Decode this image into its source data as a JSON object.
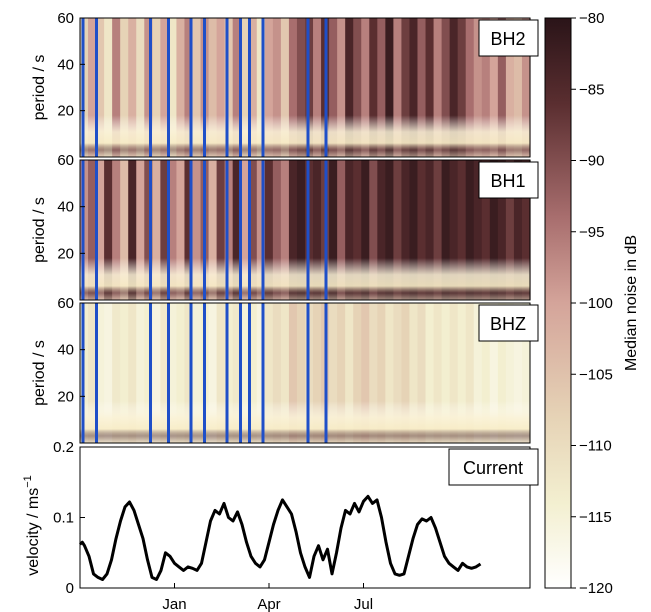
{
  "chart_data": {
    "type": "heatmap",
    "panels": [
      {
        "label": "BH2",
        "ylabel": "period / s",
        "ylim": [
          0,
          60
        ],
        "yticks": [
          20,
          40,
          60
        ],
        "tick_labels": [
          "20",
          "40",
          "60"
        ],
        "darkness": [
          0.3,
          0.5,
          0.35,
          0.2,
          0.6,
          0.3,
          0.45,
          0.25,
          0.55,
          0.3,
          0.5,
          0.2,
          0.45,
          0.6,
          0.35,
          0.55,
          0.4,
          0.5,
          0.35,
          0.6,
          0.3,
          0.45,
          0.2,
          0.5,
          0.55,
          0.35,
          0.65,
          0.75,
          0.8,
          0.6,
          0.85,
          0.7,
          0.55,
          0.9,
          0.75,
          0.6,
          0.85,
          0.7,
          0.95,
          0.6,
          0.8,
          0.9,
          0.7,
          0.85,
          0.6,
          0.75,
          0.9,
          0.8,
          0.65,
          0.55,
          0.6,
          0.5,
          0.7,
          0.45,
          0.4,
          0.55
        ]
      },
      {
        "label": "BH1",
        "ylabel": "period / s",
        "ylim": [
          0,
          60
        ],
        "yticks": [
          20,
          40,
          60
        ],
        "tick_labels": [
          "20",
          "40",
          "60"
        ],
        "darkness": [
          0.55,
          0.7,
          0.5,
          0.85,
          0.6,
          0.4,
          0.9,
          0.5,
          0.75,
          0.45,
          0.8,
          0.6,
          0.5,
          0.85,
          0.55,
          0.7,
          0.45,
          0.8,
          0.6,
          0.9,
          0.5,
          0.75,
          0.55,
          0.85,
          0.7,
          0.6,
          0.9,
          0.95,
          0.85,
          0.9,
          0.8,
          0.95,
          0.7,
          0.9,
          0.85,
          0.95,
          0.75,
          0.9,
          0.95,
          0.8,
          0.9,
          0.95,
          0.85,
          0.9,
          0.8,
          0.95,
          0.9,
          0.85,
          0.95,
          0.9,
          0.85,
          0.95,
          0.9,
          0.8,
          0.9,
          0.85
        ]
      },
      {
        "label": "BHZ",
        "ylabel": "period / s",
        "ylim": [
          0,
          60
        ],
        "yticks": [
          20,
          40,
          60
        ],
        "tick_labels": [
          "20",
          "40",
          "60"
        ],
        "darkness": [
          0.15,
          0.2,
          0.12,
          0.1,
          0.18,
          0.15,
          0.2,
          0.12,
          0.15,
          0.1,
          0.18,
          0.12,
          0.15,
          0.2,
          0.12,
          0.15,
          0.1,
          0.2,
          0.15,
          0.18,
          0.12,
          0.15,
          0.1,
          0.2,
          0.25,
          0.2,
          0.35,
          0.3,
          0.25,
          0.3,
          0.35,
          0.25,
          0.3,
          0.2,
          0.3,
          0.35,
          0.25,
          0.3,
          0.2,
          0.25,
          0.3,
          0.2,
          0.25,
          0.15,
          0.2,
          0.15,
          0.2,
          0.15,
          0.2,
          0.12,
          0.15,
          0.1,
          0.15,
          0.12,
          0.1,
          0.12
        ]
      }
    ],
    "blue_lines_x": [
      0.0,
      0.03,
      0.15,
      0.19,
      0.24,
      0.27,
      0.32,
      0.35,
      0.37,
      0.4,
      0.5,
      0.54
    ],
    "colorbar": {
      "label": "Median noise in dB",
      "range": [
        -120,
        -80
      ],
      "ticks": [
        -80,
        -85,
        -90,
        -95,
        -100,
        -105,
        -110,
        -115,
        -120
      ],
      "tick_labels": [
        "−80",
        "−85",
        "−90",
        "−95",
        "−100",
        "−105",
        "−110",
        "−115",
        "−120"
      ]
    },
    "line_panel": {
      "type": "line",
      "label": "Current",
      "ylabel_main": "velocity / ms",
      "ylabel_sup": "−1",
      "ylim": [
        0,
        0.2
      ],
      "yticks": [
        0,
        0.1,
        0.2
      ],
      "tick_labels": [
        "0",
        "0.1",
        "0.2"
      ],
      "x": [
        0,
        0.005,
        0.01,
        0.02,
        0.03,
        0.04,
        0.05,
        0.06,
        0.07,
        0.08,
        0.09,
        0.1,
        0.11,
        0.12,
        0.13,
        0.14,
        0.15,
        0.16,
        0.17,
        0.18,
        0.19,
        0.2,
        0.21,
        0.22,
        0.23,
        0.24,
        0.25,
        0.26,
        0.27,
        0.28,
        0.29,
        0.3,
        0.31,
        0.32,
        0.33,
        0.34,
        0.35,
        0.36,
        0.37,
        0.38,
        0.39,
        0.4,
        0.41,
        0.42,
        0.43,
        0.44,
        0.45,
        0.46,
        0.47,
        0.48,
        0.49,
        0.5,
        0.51,
        0.52,
        0.53,
        0.54,
        0.55,
        0.56,
        0.57,
        0.58,
        0.59,
        0.6,
        0.61,
        0.62,
        0.63,
        0.64,
        0.65,
        0.66,
        0.67,
        0.68,
        0.69,
        0.7,
        0.71,
        0.72,
        0.73,
        0.74,
        0.75,
        0.76,
        0.77,
        0.78,
        0.79,
        0.8,
        0.81,
        0.82,
        0.83,
        0.84,
        0.85,
        0.86,
        0.87,
        0.88,
        0.89
      ],
      "y": [
        0.062,
        0.065,
        0.06,
        0.045,
        0.02,
        0.015,
        0.012,
        0.02,
        0.04,
        0.07,
        0.095,
        0.115,
        0.122,
        0.11,
        0.09,
        0.07,
        0.04,
        0.015,
        0.012,
        0.025,
        0.05,
        0.045,
        0.035,
        0.03,
        0.025,
        0.03,
        0.028,
        0.025,
        0.035,
        0.065,
        0.095,
        0.11,
        0.105,
        0.12,
        0.1,
        0.095,
        0.108,
        0.09,
        0.065,
        0.045,
        0.035,
        0.03,
        0.04,
        0.065,
        0.09,
        0.11,
        0.125,
        0.115,
        0.105,
        0.08,
        0.05,
        0.03,
        0.015,
        0.045,
        0.06,
        0.04,
        0.055,
        0.02,
        0.05,
        0.085,
        0.11,
        0.105,
        0.12,
        0.108,
        0.123,
        0.13,
        0.12,
        0.125,
        0.1,
        0.065,
        0.035,
        0.02,
        0.018,
        0.02,
        0.045,
        0.07,
        0.09,
        0.098,
        0.095,
        0.1,
        0.085,
        0.065,
        0.045,
        0.035,
        0.03,
        0.025,
        0.035,
        0.03,
        0.028,
        0.03,
        0.034
      ]
    },
    "x_axis": {
      "ticks": [
        0.21,
        0.42,
        0.63
      ],
      "tick_labels": [
        "Jan",
        "Apr",
        "Jul"
      ]
    }
  }
}
